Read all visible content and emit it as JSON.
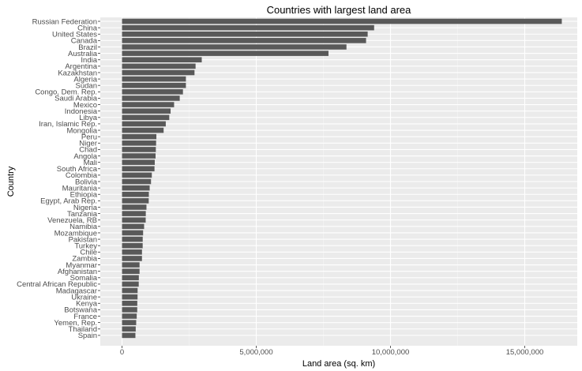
{
  "chart_data": {
    "type": "bar",
    "orientation": "horizontal",
    "title": "Countries with largest land area",
    "xlabel": "Land area (sq. km)",
    "ylabel": "Country",
    "xlim": [
      0,
      17000000
    ],
    "x_ticks": [
      0,
      5000000,
      10000000,
      15000000
    ],
    "x_tick_labels": [
      "0",
      "5,000,000",
      "10,000,000",
      "15,000,000"
    ],
    "grid": true,
    "bar_color": "#595959",
    "panel_color": "#ebebeb",
    "categories": [
      "Russian Federation",
      "China",
      "United States",
      "Canada",
      "Brazil",
      "Australia",
      "India",
      "Argentina",
      "Kazakhstan",
      "Algeria",
      "Sudan",
      "Congo, Dem. Rep.",
      "Saudi Arabia",
      "Mexico",
      "Indonesia",
      "Libya",
      "Iran, Islamic Rep.",
      "Mongolia",
      "Peru",
      "Niger",
      "Chad",
      "Angola",
      "Mali",
      "South Africa",
      "Colombia",
      "Bolivia",
      "Mauritania",
      "Ethiopia",
      "Egypt, Arab Rep.",
      "Nigeria",
      "Tanzania",
      "Venezuela, RB",
      "Namibia",
      "Mozambique",
      "Pakistan",
      "Turkey",
      "Chile",
      "Zambia",
      "Myanmar",
      "Afghanistan",
      "Somalia",
      "Central African Republic",
      "Madagascar",
      "Ukraine",
      "Kenya",
      "Botswana",
      "France",
      "Yemen, Rep.",
      "Thailand",
      "Spain"
    ],
    "values": [
      16380000,
      9390000,
      9150000,
      9090000,
      8360000,
      7690000,
      2970000,
      2740000,
      2700000,
      2380000,
      2380000,
      2270000,
      2150000,
      1940000,
      1810000,
      1760000,
      1630000,
      1550000,
      1280000,
      1270000,
      1260000,
      1250000,
      1220000,
      1210000,
      1110000,
      1080000,
      1030000,
      1000000,
      995000,
      911000,
      886000,
      882000,
      823000,
      786000,
      771000,
      770000,
      744000,
      743000,
      653000,
      653000,
      627000,
      623000,
      581000,
      579000,
      569000,
      567000,
      548000,
      528000,
      511000,
      499000
    ]
  }
}
